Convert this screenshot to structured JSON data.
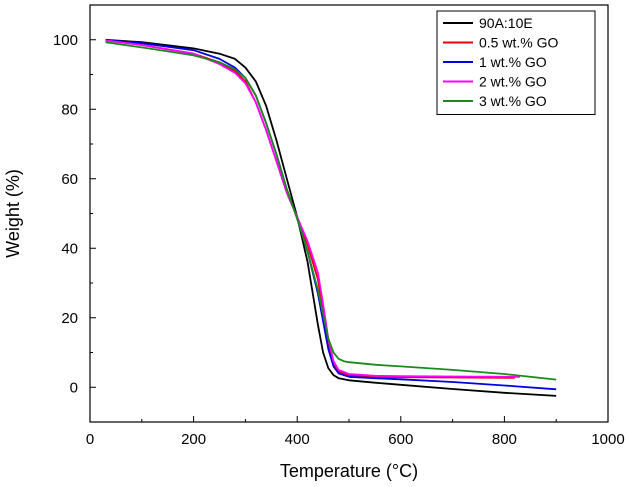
{
  "chart_data": {
    "type": "line",
    "title": "",
    "xlabel": "Temperature (°C)",
    "ylabel": "Weight (%)",
    "xlim": [
      0,
      1000
    ],
    "ylim": [
      -10,
      110
    ],
    "xticks": [
      0,
      200,
      400,
      600,
      800,
      1000
    ],
    "yticks": [
      0,
      20,
      40,
      60,
      80,
      100
    ],
    "grid": false,
    "legend_position": "top-right",
    "series": [
      {
        "name": "90A:10E",
        "color": "#000000",
        "x": [
          30,
          100,
          200,
          250,
          280,
          300,
          320,
          340,
          360,
          380,
          400,
          420,
          440,
          450,
          460,
          470,
          480,
          500,
          550,
          600,
          700,
          800,
          900
        ],
        "y": [
          100,
          99.3,
          97.5,
          96,
          94.5,
          92,
          88,
          81,
          71,
          60,
          49,
          36,
          18,
          10,
          5.5,
          3.5,
          2.6,
          2,
          1.3,
          0.7,
          -0.5,
          -1.6,
          -2.5
        ]
      },
      {
        "name": "0.5 wt.% GO",
        "color": "#e8000b",
        "x": [
          30,
          100,
          200,
          250,
          280,
          300,
          320,
          340,
          360,
          380,
          400,
          420,
          440,
          450,
          460,
          470,
          480,
          500,
          550,
          600,
          700,
          820
        ],
        "y": [
          99.8,
          98.5,
          96,
          93.5,
          91,
          88,
          82,
          74,
          65,
          56,
          49,
          41,
          31,
          22,
          12,
          6.5,
          4.5,
          3.5,
          3,
          2.9,
          2.8,
          2.7
        ]
      },
      {
        "name": "1 wt.% GO",
        "color": "#0000e6",
        "x": [
          30,
          100,
          200,
          250,
          280,
          300,
          320,
          340,
          360,
          380,
          400,
          420,
          440,
          450,
          460,
          470,
          480,
          500,
          550,
          600,
          700,
          800,
          900
        ],
        "y": [
          99.9,
          99,
          97,
          94.5,
          92,
          89,
          84,
          76,
          67,
          57,
          48.5,
          39,
          27,
          19,
          11,
          6,
          4,
          3,
          2.6,
          2.3,
          1.5,
          0.5,
          -0.6
        ]
      },
      {
        "name": "2 wt.% GO",
        "color": "#ff00ff",
        "x": [
          30,
          100,
          200,
          250,
          280,
          300,
          320,
          340,
          360,
          380,
          400,
          420,
          440,
          450,
          460,
          470,
          480,
          500,
          550,
          600,
          700,
          830
        ],
        "y": [
          99.8,
          98.5,
          96,
          93,
          90.5,
          87.5,
          82,
          74,
          65,
          56,
          49,
          42,
          33,
          24,
          14,
          7.5,
          5,
          3.8,
          3.3,
          3.2,
          3.1,
          3
        ]
      },
      {
        "name": "3 wt.% GO",
        "color": "#1a8a1a",
        "x": [
          30,
          100,
          200,
          250,
          280,
          300,
          320,
          340,
          360,
          380,
          400,
          420,
          440,
          450,
          460,
          470,
          480,
          490,
          500,
          550,
          600,
          700,
          800,
          900
        ],
        "y": [
          99.3,
          97.8,
          95.5,
          93.5,
          91.5,
          89,
          84,
          76,
          67,
          57,
          48.5,
          39,
          28,
          21,
          14,
          10,
          8.2,
          7.5,
          7.2,
          6.5,
          6,
          5,
          3.8,
          2.2
        ]
      }
    ]
  }
}
